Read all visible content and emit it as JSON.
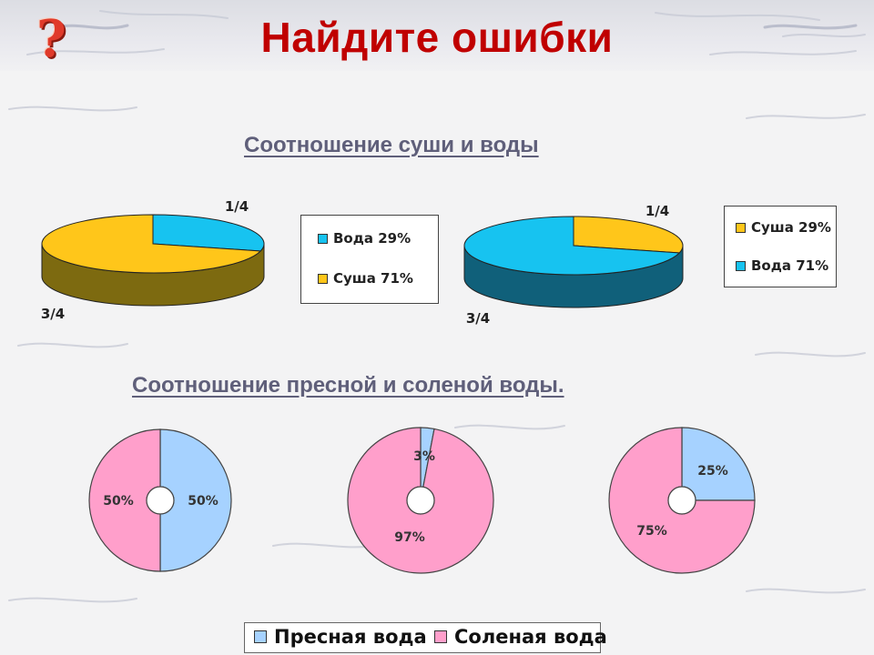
{
  "page": {
    "title": "Найдите ошибки",
    "question_icon": "question-mark-icon",
    "heading_land_water": "Соотношение суши и воды",
    "heading_fresh_salt": "Соотношение пресной и соленой воды. "
  },
  "colors": {
    "title": "#c00000",
    "water": "#17c3f0",
    "water_side": "#10607a",
    "land": "#ffc61a",
    "land_side": "#7d6a10",
    "fresh": "#a6d2ff",
    "salt": "#ff9fcb",
    "heading": "#5f5f7a"
  },
  "chart_data": [
    {
      "type": "pie",
      "variant": "3d",
      "slices": [
        {
          "label": "Вода 29%",
          "value": 29,
          "color": "#17c3f0"
        },
        {
          "label": "Суша 71%",
          "value": 71,
          "color": "#ffc61a"
        }
      ],
      "data_labels": [
        "1/4",
        "3/4"
      ],
      "legend": [
        "Вода 29%",
        "Суша 71%"
      ],
      "legend_position": "right"
    },
    {
      "type": "pie",
      "variant": "3d",
      "slices": [
        {
          "label": "Суша 29%",
          "value": 29,
          "color": "#ffc61a"
        },
        {
          "label": "Вода 71%",
          "value": 71,
          "color": "#17c3f0"
        }
      ],
      "data_labels": [
        "1/4",
        "3/4"
      ],
      "legend": [
        "Суша 29%",
        "Вода 71%"
      ],
      "legend_position": "right"
    },
    {
      "type": "pie",
      "variant": "doughnut",
      "slices": [
        {
          "label": "Пресная вода",
          "value": 50,
          "display": "50%"
        },
        {
          "label": "Соленая вода",
          "value": 50,
          "display": "50%"
        }
      ]
    },
    {
      "type": "pie",
      "variant": "doughnut",
      "slices": [
        {
          "label": "Пресная вода",
          "value": 3,
          "display": "3%"
        },
        {
          "label": "Соленая вода",
          "value": 97,
          "display": "97%"
        }
      ]
    },
    {
      "type": "pie",
      "variant": "doughnut",
      "slices": [
        {
          "label": "Пресная вода",
          "value": 25,
          "display": "25%"
        },
        {
          "label": "Соленая вода",
          "value": 75,
          "display": "75%"
        }
      ]
    }
  ],
  "bottom_legend": {
    "fresh": "Пресная вода",
    "salt": "Соленая вода",
    "position": "bottom"
  }
}
